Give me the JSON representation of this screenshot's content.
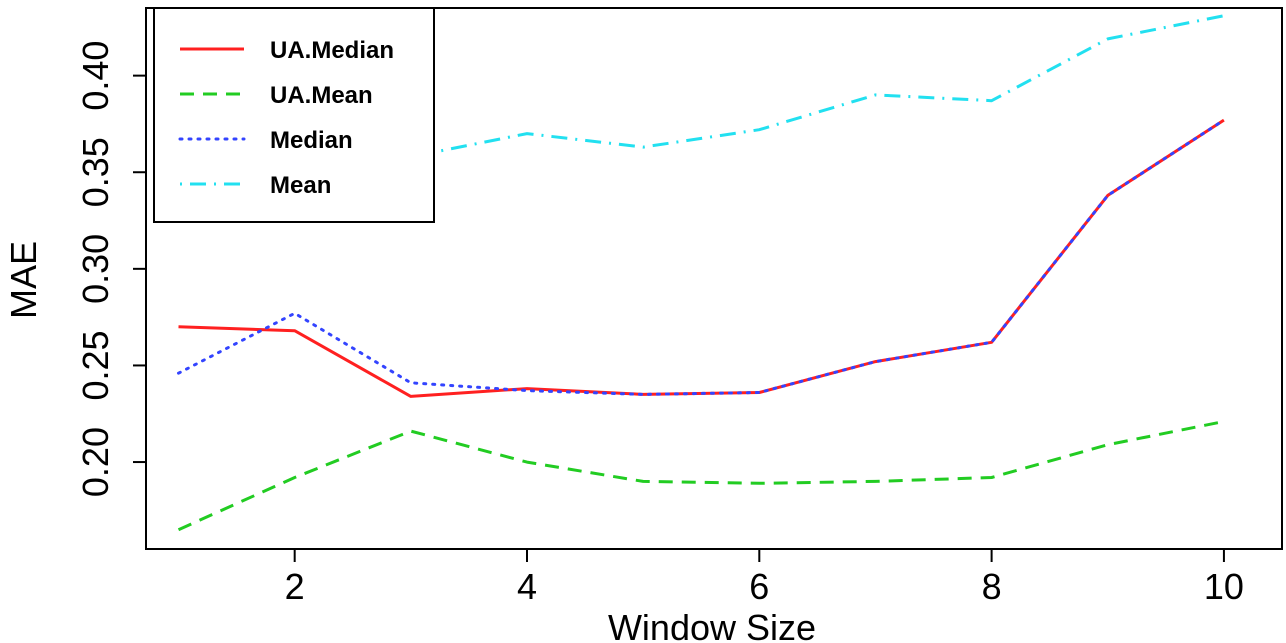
{
  "chart_data": {
    "type": "line",
    "title": "",
    "xlabel": "Window Size",
    "ylabel": "MAE",
    "xlim": [
      0.72,
      10.5
    ],
    "ylim": [
      0.155,
      0.435
    ],
    "x_ticks": [
      2,
      4,
      6,
      8,
      10
    ],
    "x_tick_labels": [
      "2",
      "4",
      "6",
      "8",
      "10"
    ],
    "y_ticks": [
      0.2,
      0.25,
      0.3,
      0.35,
      0.4
    ],
    "y_tick_labels": [
      "0.20",
      "0.25",
      "0.30",
      "0.35",
      "0.40"
    ],
    "grid": false,
    "legend_position": "top-left",
    "x": [
      1,
      2,
      3,
      4,
      5,
      6,
      7,
      8,
      9,
      10
    ],
    "series": [
      {
        "name": "UA.Median",
        "color": "#ff2020",
        "style": "solid",
        "values": [
          0.27,
          0.268,
          0.234,
          0.238,
          0.235,
          0.236,
          0.252,
          0.262,
          0.338,
          0.377
        ]
      },
      {
        "name": "UA.Mean",
        "color": "#22cc22",
        "style": "dashed",
        "values": [
          0.165,
          0.192,
          0.216,
          0.2,
          0.19,
          0.189,
          0.19,
          0.192,
          0.209,
          0.221
        ]
      },
      {
        "name": "Median",
        "color": "#3344ff",
        "style": "dotted",
        "values": [
          0.246,
          0.277,
          0.241,
          0.237,
          0.235,
          0.236,
          0.252,
          0.262,
          0.338,
          0.377
        ]
      },
      {
        "name": "Mean",
        "color": "#22e0f0",
        "style": "dotdash",
        "values": [
          0.325,
          0.34,
          0.358,
          0.37,
          0.363,
          0.372,
          0.39,
          0.387,
          0.419,
          0.431
        ]
      }
    ]
  }
}
